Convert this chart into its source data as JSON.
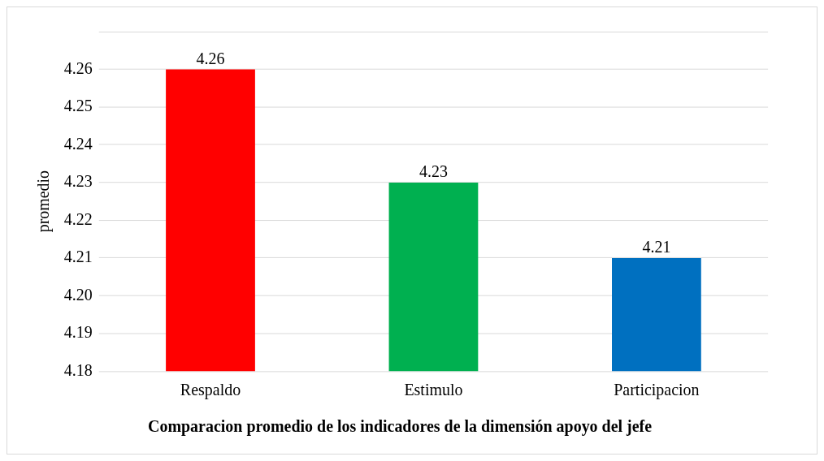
{
  "chart_data": {
    "type": "bar",
    "title": "Comparacion promedio de los indicadores de la dimensión apoyo del jefe",
    "ylabel": "promedio",
    "categories": [
      "Respaldo",
      "Estimulo",
      "Participacion"
    ],
    "values": [
      4.26,
      4.23,
      4.21
    ],
    "colors": [
      "#ff0000",
      "#00b050",
      "#0070c0"
    ],
    "ylim": [
      4.18,
      4.27
    ],
    "yticks": [
      4.18,
      4.19,
      {
        "value": 4.2,
        "label": "4.20"
      },
      4.21,
      4.22,
      4.23,
      4.24,
      4.25,
      4.26,
      {
        "value": 4.27,
        "label": null
      }
    ],
    "grid": "y",
    "data_labels": true,
    "legend": false
  }
}
